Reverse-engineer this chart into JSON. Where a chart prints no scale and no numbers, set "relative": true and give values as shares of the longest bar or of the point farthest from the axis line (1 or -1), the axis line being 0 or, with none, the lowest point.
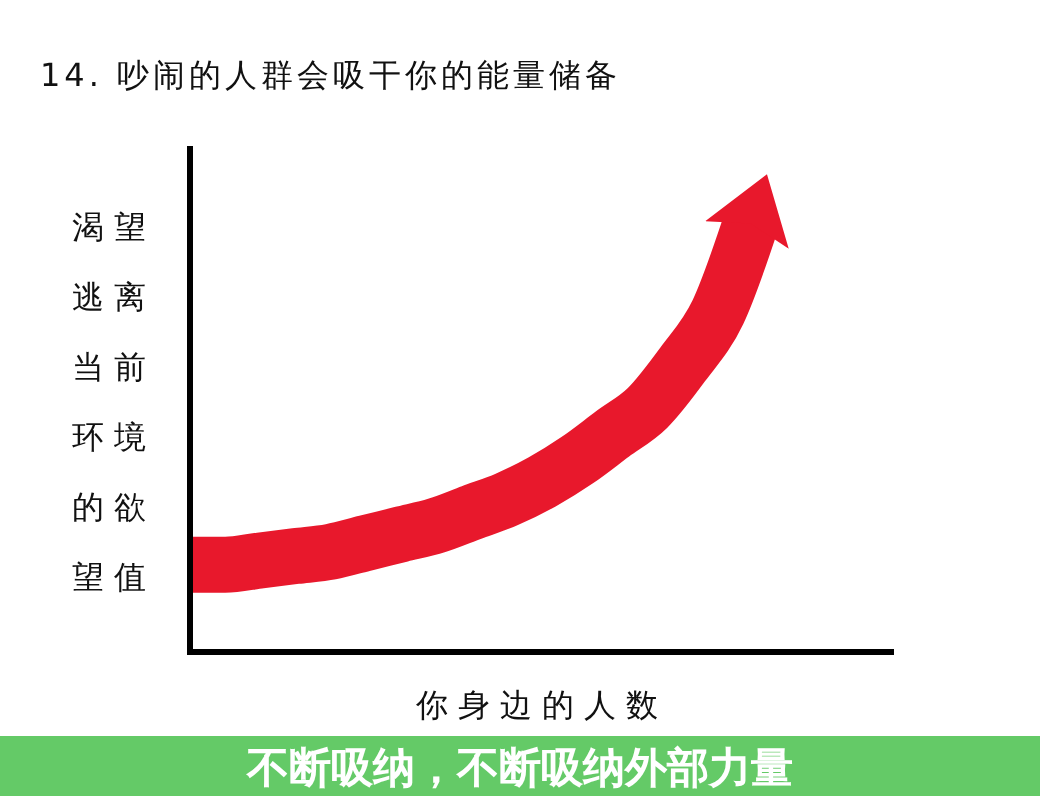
{
  "chart_data": {
    "type": "line",
    "title": "14. 吵闹的人群会吸干你的能量储备",
    "xlabel": "你身边的人数",
    "ylabel": "渴望逃离当前环境的欲望值",
    "annotations": [
      "不断吸纳，不断吸纳外部力量"
    ],
    "categories": [
      null,
      null,
      null,
      null,
      null,
      null,
      null,
      null,
      null,
      null,
      null,
      null,
      null,
      null,
      null,
      null,
      null,
      null,
      null,
      null,
      null
    ],
    "series": [
      {
        "color": "#e8182c",
        "values": [
          0.2,
          0.2,
          0.21,
          0.22,
          0.23,
          0.25,
          0.27,
          0.29,
          0.32,
          0.35,
          0.39,
          0.44,
          0.5,
          0.56,
          0.66,
          0.78,
          1,
          null,
          null,
          null,
          null
        ]
      }
    ],
    "relative": true
  }
}
